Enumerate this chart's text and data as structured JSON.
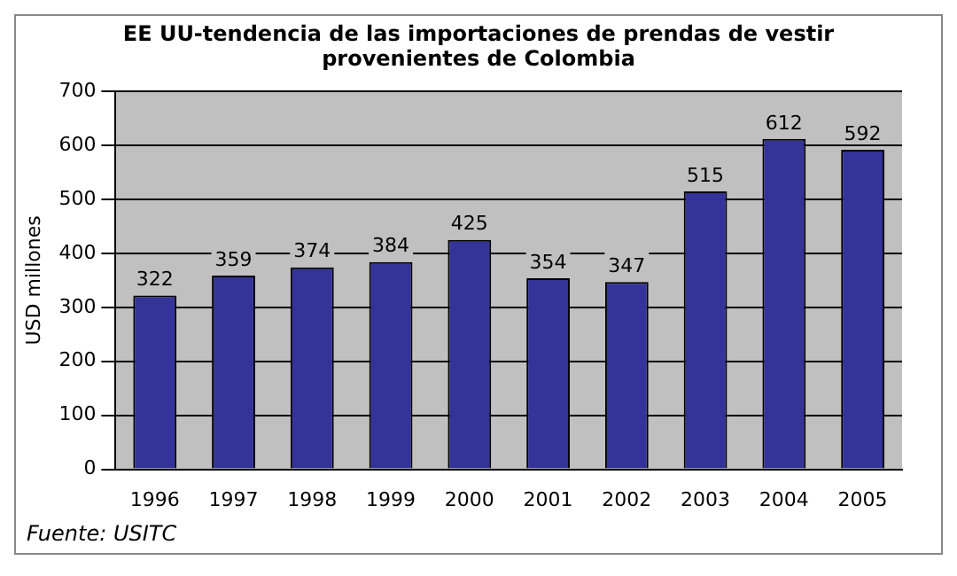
{
  "chart_data": {
    "type": "bar",
    "title": "EE UU-tendencia de las importaciones de prendas de vestir provenientes de Colombia",
    "ylabel": "USD millones",
    "categories": [
      "1996",
      "1997",
      "1998",
      "1999",
      "2000",
      "2001",
      "2002",
      "2003",
      "2004",
      "2005"
    ],
    "values": [
      322,
      359,
      374,
      384,
      425,
      354,
      347,
      515,
      612,
      592
    ],
    "color": "#333399",
    "ylim": [
      0,
      700
    ],
    "yticks": [
      0,
      100,
      200,
      300,
      400,
      500,
      600,
      700
    ],
    "grid": "y",
    "data_labels": true,
    "legend": false,
    "annotations": [
      "Fuente: USITC"
    ]
  }
}
